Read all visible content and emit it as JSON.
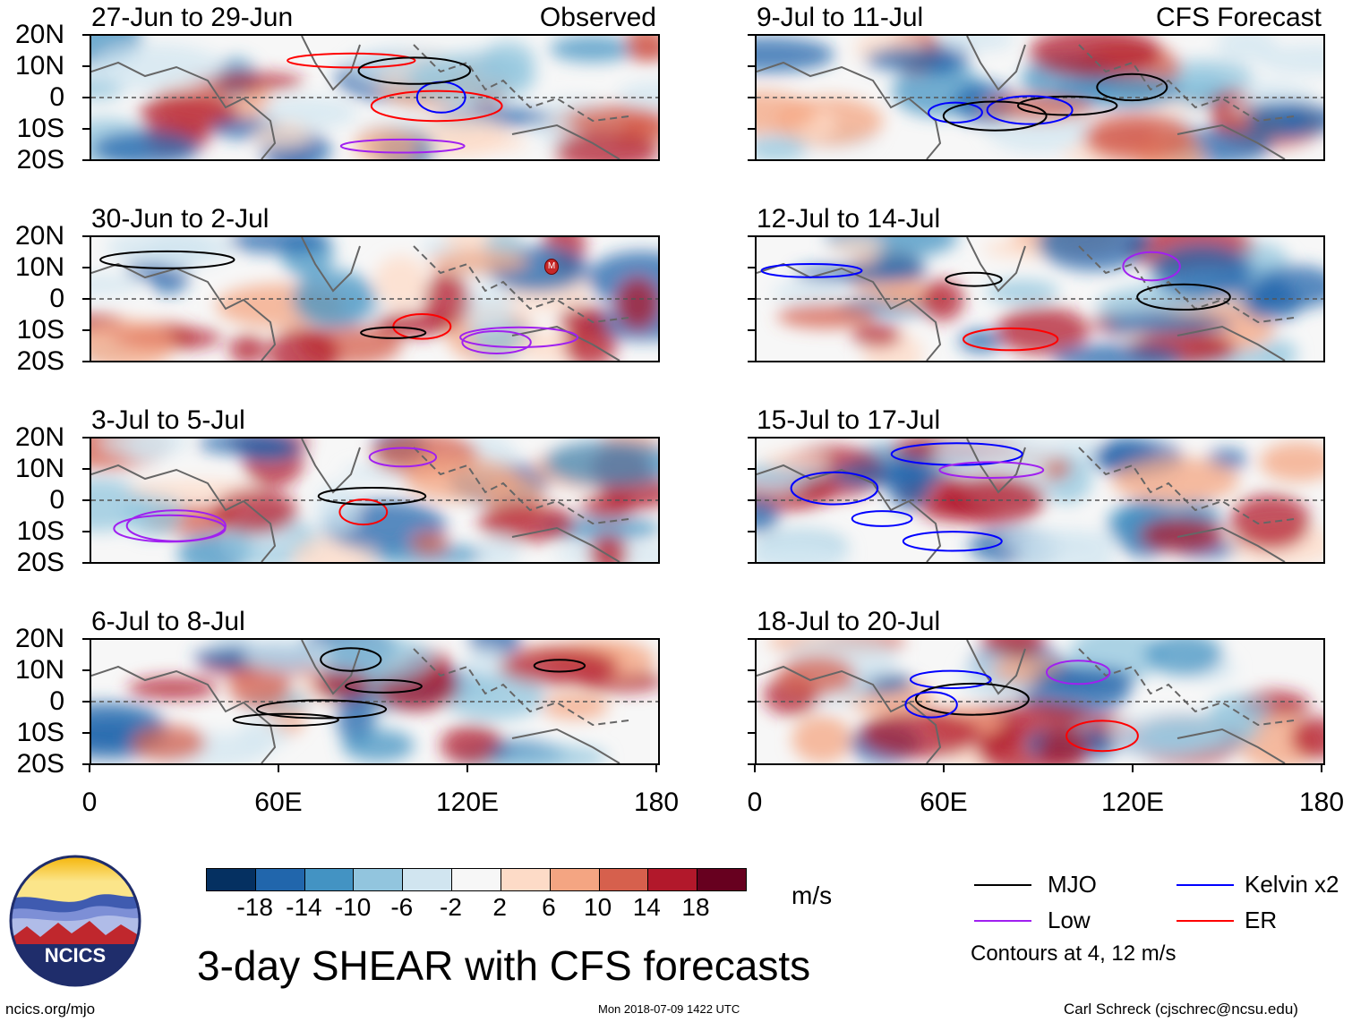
{
  "panels": [
    {
      "title": "27-Jun to 29-Jun",
      "label": "Observed",
      "seed": 1
    },
    {
      "title": "30-Jun to 2-Jul",
      "label": "",
      "seed": 2
    },
    {
      "title": "3-Jul to 5-Jul",
      "label": "",
      "seed": 3
    },
    {
      "title": "6-Jul to 8-Jul",
      "label": "",
      "seed": 4
    },
    {
      "title": "9-Jul to 11-Jul",
      "label": "CFS Forecast",
      "seed": 5
    },
    {
      "title": "12-Jul to 14-Jul",
      "label": "",
      "seed": 6
    },
    {
      "title": "15-Jul to 17-Jul",
      "label": "",
      "seed": 7
    },
    {
      "title": "18-Jul to 20-Jul",
      "label": "",
      "seed": 8
    }
  ],
  "y_axis_labels": [
    "20N",
    "10N",
    "0",
    "10S",
    "20S"
  ],
  "x_axis_labels": [
    "0",
    "60E",
    "120E",
    "180"
  ],
  "colorbar": {
    "colors": [
      "#053061",
      "#2166ac",
      "#4393c3",
      "#92c5de",
      "#d1e5f0",
      "#f7f7f7",
      "#fddbc7",
      "#f4a582",
      "#d6604d",
      "#b2182b",
      "#67001f"
    ],
    "labels": [
      "-18",
      "-14",
      "-10",
      "-6",
      "-2",
      "2",
      "6",
      "10",
      "14",
      "18"
    ],
    "units": "m/s"
  },
  "legend": {
    "mjo": "MJO",
    "kelvin": "Kelvin x2",
    "low": "Low",
    "er": "ER",
    "contours": "Contours at 4, 12 m/s",
    "colors": {
      "mjo": "#000000",
      "kelvin": "#0000ff",
      "low": "#a020f0",
      "er": "#ff0000"
    }
  },
  "main_title": "3-day SHEAR with CFS forecasts",
  "logo_text": "NCICS",
  "footer": {
    "left": "ncics.org/mjo",
    "center": "Mon 2018-07-09 1422 UTC",
    "right": "Carl Schreck (cjschrec@ncsu.edu)"
  },
  "storm_marker": "M"
}
